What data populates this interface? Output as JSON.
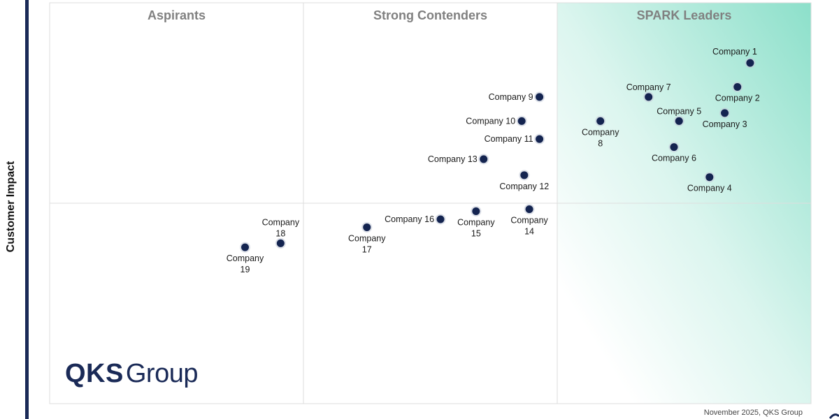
{
  "chart_data": {
    "type": "scatter",
    "title": "",
    "xlabel": "",
    "ylabel": "Customer Impact",
    "xlim": [
      0,
      3
    ],
    "ylim": [
      0,
      2
    ],
    "grid": true,
    "quadrants": [
      "Aspirants",
      "Strong Contenders",
      "SPARK Leaders"
    ],
    "highlight_color": "#7fdcc4",
    "point_color": "#142450",
    "points": [
      {
        "label": "Company 1",
        "lines": [
          "Company 1"
        ],
        "x": 2.76,
        "y": 1.7,
        "label_pos": "above-left"
      },
      {
        "label": "Company 2",
        "lines": [
          "Company 2"
        ],
        "x": 2.71,
        "y": 1.58,
        "label_pos": "below"
      },
      {
        "label": "Company 3",
        "lines": [
          "Company 3"
        ],
        "x": 2.66,
        "y": 1.45,
        "label_pos": "below"
      },
      {
        "label": "Company 4",
        "lines": [
          "Company 4"
        ],
        "x": 2.6,
        "y": 1.13,
        "label_pos": "below"
      },
      {
        "label": "Company 5",
        "lines": [
          "Company 5"
        ],
        "x": 2.48,
        "y": 1.41,
        "label_pos": "above"
      },
      {
        "label": "Company 6",
        "lines": [
          "Company 6"
        ],
        "x": 2.46,
        "y": 1.28,
        "label_pos": "below"
      },
      {
        "label": "Company 7",
        "lines": [
          "Company 7"
        ],
        "x": 2.36,
        "y": 1.53,
        "label_pos": "above"
      },
      {
        "label": "Company 8",
        "lines": [
          "Company",
          "8"
        ],
        "x": 2.17,
        "y": 1.41,
        "label_pos": "below"
      },
      {
        "label": "Company 9",
        "lines": [
          "Company 9"
        ],
        "x": 1.93,
        "y": 1.53,
        "label_pos": "left"
      },
      {
        "label": "Company 10",
        "lines": [
          "Company 10"
        ],
        "x": 1.86,
        "y": 1.41,
        "label_pos": "left"
      },
      {
        "label": "Company 11",
        "lines": [
          "Company 11"
        ],
        "x": 1.93,
        "y": 1.32,
        "label_pos": "left"
      },
      {
        "label": "Company 12",
        "lines": [
          "Company 12"
        ],
        "x": 1.87,
        "y": 1.14,
        "label_pos": "below"
      },
      {
        "label": "Company 13",
        "lines": [
          "Company 13"
        ],
        "x": 1.71,
        "y": 1.22,
        "label_pos": "left"
      },
      {
        "label": "Company 14",
        "lines": [
          "Company",
          "14"
        ],
        "x": 1.89,
        "y": 0.97,
        "label_pos": "below"
      },
      {
        "label": "Company 15",
        "lines": [
          "Company",
          "15"
        ],
        "x": 1.68,
        "y": 0.96,
        "label_pos": "below"
      },
      {
        "label": "Company 16",
        "lines": [
          "Company 16"
        ],
        "x": 1.54,
        "y": 0.92,
        "label_pos": "left"
      },
      {
        "label": "Company 17",
        "lines": [
          "Company",
          "17"
        ],
        "x": 1.25,
        "y": 0.88,
        "label_pos": "below"
      },
      {
        "label": "Company 18",
        "lines": [
          "Company",
          "18"
        ],
        "x": 0.91,
        "y": 0.8,
        "label_pos": "above"
      },
      {
        "label": "Company 19",
        "lines": [
          "Company",
          "19"
        ],
        "x": 0.77,
        "y": 0.78,
        "label_pos": "below"
      }
    ]
  },
  "logo": {
    "bold_text": "QKS",
    "light_text": "Group"
  },
  "footnote": "November 2025, QKS Group"
}
